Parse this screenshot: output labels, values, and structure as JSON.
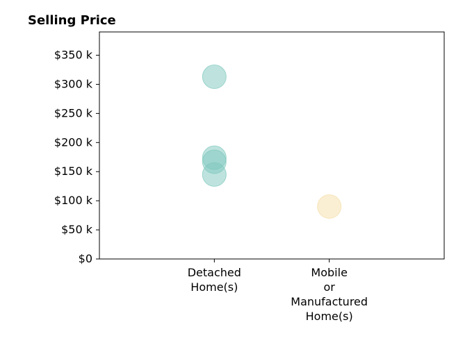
{
  "chart_data": {
    "type": "scatter",
    "title": "Selling Price",
    "xlabel": "",
    "ylabel": "",
    "categories": [
      [
        "Detached",
        "Home(s)"
      ],
      [
        "Mobile",
        "or",
        "Manufactured",
        "Home(s)"
      ]
    ],
    "x_range": [
      -1,
      2
    ],
    "ylim": [
      0,
      390000
    ],
    "y_ticks": [
      0,
      50000,
      100000,
      150000,
      200000,
      250000,
      300000,
      350000
    ],
    "y_tick_labels": [
      "$0",
      "$50 k",
      "$100 k",
      "$150 k",
      "$200 k",
      "$250 k",
      "$300 k",
      "$350 k"
    ],
    "grid": false,
    "series": [
      {
        "category": 0,
        "color": "#7ec8be",
        "points": [
          {
            "x": 0,
            "y": 313000
          },
          {
            "x": 0,
            "y": 174000
          },
          {
            "x": 0,
            "y": 167000
          },
          {
            "x": 0,
            "y": 145000
          }
        ]
      },
      {
        "category": 1,
        "color": "#f5dea8",
        "points": [
          {
            "x": 1,
            "y": 90000
          }
        ]
      }
    ]
  }
}
